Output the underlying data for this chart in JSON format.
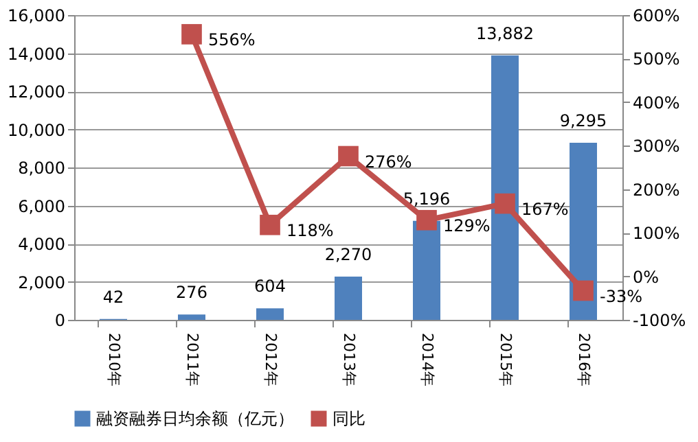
{
  "chart_data": {
    "type": "bar",
    "categories": [
      "2010年",
      "2011年",
      "2012年",
      "2013年",
      "2014年",
      "2015年",
      "2016年"
    ],
    "series": [
      {
        "name": "融资融券日均余额（亿元）",
        "color": "#4f81bd",
        "values": [
          42,
          276,
          604,
          2270,
          5196,
          13882,
          9295
        ],
        "value_labels": [
          "42",
          "276",
          "604",
          "2,270",
          "5,196",
          "13,882",
          "9,295"
        ]
      },
      {
        "name": "同比",
        "type": "line",
        "axis": "y2",
        "color": "#c0504d",
        "marker": "square",
        "values": [
          null,
          556,
          118,
          276,
          129,
          167,
          -33
        ],
        "value_labels": [
          null,
          "556%",
          "118%",
          "276%",
          "129%",
          "167%",
          "-33%"
        ]
      }
    ],
    "ylim": [
      0,
      16000
    ],
    "yticks": [
      {
        "value": 0,
        "label": "0"
      },
      {
        "value": 2000,
        "label": "2,000"
      },
      {
        "value": 4000,
        "label": "4,000"
      },
      {
        "value": 6000,
        "label": "6,000"
      },
      {
        "value": 8000,
        "label": "8,000"
      },
      {
        "value": 10000,
        "label": "10,000"
      },
      {
        "value": 12000,
        "label": "12,000"
      },
      {
        "value": 14000,
        "label": "14,000"
      },
      {
        "value": 16000,
        "label": "16,000"
      }
    ],
    "y2lim": [
      -100,
      600
    ],
    "y2ticks": [
      {
        "value": -100,
        "label": "-100%"
      },
      {
        "value": 0,
        "label": "0%"
      },
      {
        "value": 100,
        "label": "100%"
      },
      {
        "value": 200,
        "label": "200%"
      },
      {
        "value": 300,
        "label": "300%"
      },
      {
        "value": 400,
        "label": "400%"
      },
      {
        "value": 500,
        "label": "500%"
      },
      {
        "value": 600,
        "label": "600%"
      }
    ],
    "grid": "y",
    "legend": "bottom"
  }
}
